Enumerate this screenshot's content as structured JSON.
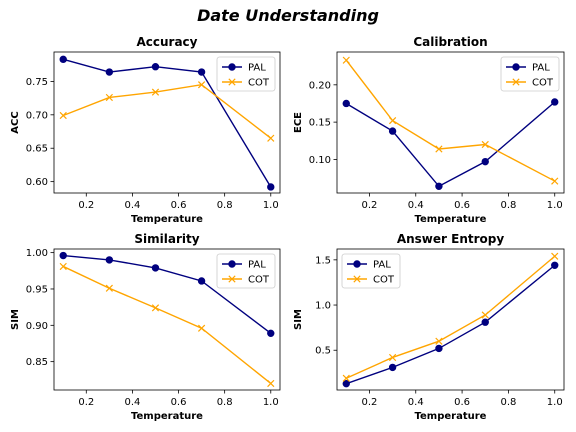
{
  "title": "Date Understanding",
  "chart_data": [
    {
      "type": "line",
      "title": "Accuracy",
      "xlabel": "Temperature",
      "ylabel": "ACC",
      "xlim": [
        0.06,
        1.04
      ],
      "ylim": [
        0.583,
        0.794
      ],
      "xticks": [
        0.2,
        0.4,
        0.6,
        0.8,
        1.0
      ],
      "xtick_labels": [
        "0.2",
        "0.4",
        "0.6",
        "0.8",
        "1.0"
      ],
      "yticks": [
        0.6,
        0.65,
        0.7,
        0.75
      ],
      "ytick_labels": [
        "0.60",
        "0.65",
        "0.70",
        "0.75"
      ],
      "x": [
        0.1,
        0.3,
        0.5,
        0.7,
        1.0
      ],
      "series": [
        {
          "name": "PAL",
          "values": [
            0.783,
            0.764,
            0.772,
            0.764,
            0.592
          ]
        },
        {
          "name": "COT",
          "values": [
            0.699,
            0.726,
            0.734,
            0.745,
            0.665
          ]
        }
      ],
      "legend": "upper right",
      "grid": false
    },
    {
      "type": "line",
      "title": "Calibration",
      "xlabel": "Temperature",
      "ylabel": "ECE",
      "xlim": [
        0.06,
        1.04
      ],
      "ylim": [
        0.055,
        0.244
      ],
      "xticks": [
        0.2,
        0.4,
        0.6,
        0.8,
        1.0
      ],
      "xtick_labels": [
        "0.2",
        "0.4",
        "0.6",
        "0.8",
        "1.0"
      ],
      "yticks": [
        0.1,
        0.15,
        0.2
      ],
      "ytick_labels": [
        "0.10",
        "0.15",
        "0.20"
      ],
      "x": [
        0.1,
        0.3,
        0.5,
        0.7,
        1.0
      ],
      "series": [
        {
          "name": "PAL",
          "values": [
            0.175,
            0.138,
            0.064,
            0.097,
            0.177
          ]
        },
        {
          "name": "COT",
          "values": [
            0.233,
            0.152,
            0.114,
            0.12,
            0.071
          ]
        }
      ],
      "legend": "upper right",
      "grid": false
    },
    {
      "type": "line",
      "title": "Similarity",
      "xlabel": "Temperature",
      "ylabel": "SIM",
      "xlim": [
        0.06,
        1.04
      ],
      "ylim": [
        0.811,
        1.005
      ],
      "xticks": [
        0.2,
        0.4,
        0.6,
        0.8,
        1.0
      ],
      "xtick_labels": [
        "0.2",
        "0.4",
        "0.6",
        "0.8",
        "1.0"
      ],
      "yticks": [
        0.85,
        0.9,
        0.95,
        1.0
      ],
      "ytick_labels": [
        "0.85",
        "0.90",
        "0.95",
        "1.00"
      ],
      "x": [
        0.1,
        0.3,
        0.5,
        0.7,
        1.0
      ],
      "series": [
        {
          "name": "PAL",
          "values": [
            0.996,
            0.99,
            0.979,
            0.961,
            0.889
          ]
        },
        {
          "name": "COT",
          "values": [
            0.981,
            0.951,
            0.924,
            0.896,
            0.82
          ]
        }
      ],
      "legend": "upper right",
      "grid": false
    },
    {
      "type": "line",
      "title": "Answer Entropy",
      "xlabel": "Temperature",
      "ylabel": "SIM",
      "xlim": [
        0.06,
        1.04
      ],
      "ylim": [
        0.06,
        1.62
      ],
      "xticks": [
        0.2,
        0.4,
        0.6,
        0.8,
        1.0
      ],
      "xtick_labels": [
        "0.2",
        "0.4",
        "0.6",
        "0.8",
        "1.0"
      ],
      "yticks": [
        0.5,
        1.0,
        1.5
      ],
      "ytick_labels": [
        "0.5",
        "1.0",
        "1.5"
      ],
      "x": [
        0.1,
        0.3,
        0.5,
        0.7,
        1.0
      ],
      "series": [
        {
          "name": "PAL",
          "values": [
            0.13,
            0.31,
            0.52,
            0.81,
            1.44
          ]
        },
        {
          "name": "COT",
          "values": [
            0.19,
            0.42,
            0.6,
            0.89,
            1.54
          ]
        }
      ],
      "legend": "upper left",
      "grid": false
    }
  ],
  "colors": {
    "PAL": "#00007f",
    "COT": "#ffa500"
  },
  "markers": {
    "PAL": "filled-circle",
    "COT": "x-cross"
  }
}
